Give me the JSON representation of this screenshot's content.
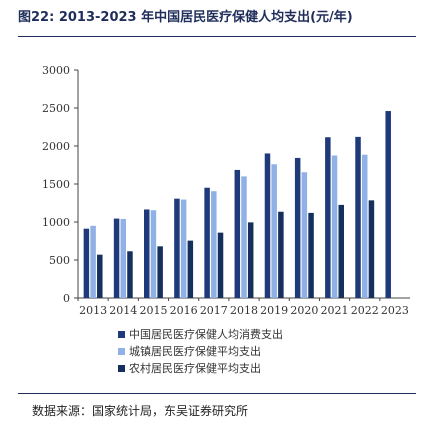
{
  "header": {
    "title": "图22: 2013-2023 年中国居民医疗保健人均支出(元/年)"
  },
  "footer": {
    "source": "数据来源：国家统计局，东吴证券研究所"
  },
  "colors": {
    "national": "#1f3a7a",
    "urban": "#8fb1e6",
    "rural": "#16305e"
  },
  "chart_data": {
    "type": "bar",
    "title": "图22: 2013-2023 年中国居民医疗保健人均支出(元/年)",
    "categories": [
      "2013",
      "2014",
      "2015",
      "2016",
      "2017",
      "2018",
      "2019",
      "2020",
      "2021",
      "2022",
      "2023"
    ],
    "ylim": [
      0,
      3000
    ],
    "yticks": [
      0,
      500,
      1000,
      1500,
      2000,
      2500,
      3000
    ],
    "grid": false,
    "legend_position": "bottom",
    "series": [
      {
        "name": "中国居民医疗保健人均消费支出",
        "values": [
          912,
          1045,
          1165,
          1307,
          1451,
          1685,
          1902,
          1843,
          2115,
          2120,
          2460
        ]
      },
      {
        "name": "城镇居民医疗保健平均支出",
        "values": [
          950,
          1040,
          1155,
          1295,
          1405,
          1600,
          1760,
          1655,
          1875,
          1885,
          null
        ]
      },
      {
        "name": "农村居民医疗保健平均支出",
        "values": [
          570,
          615,
          680,
          755,
          860,
          995,
          1135,
          1120,
          1225,
          1285,
          null
        ]
      }
    ]
  }
}
